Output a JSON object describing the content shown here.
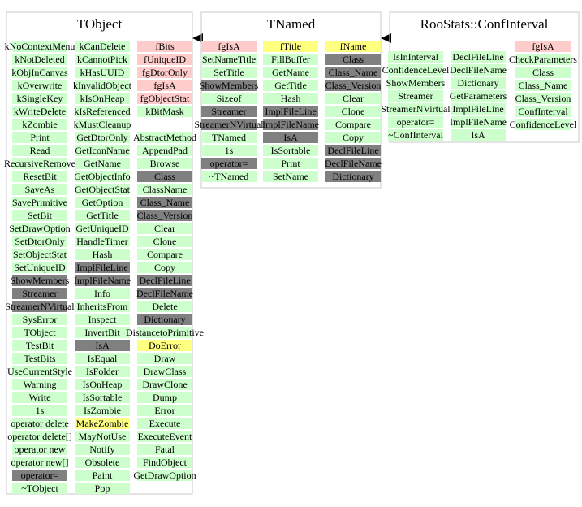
{
  "classes": [
    {
      "name": "TObject",
      "columns": [
        [
          {
            "label": "kNoContextMenu",
            "color": "#ccffcc"
          },
          {
            "label": "kNotDeleted",
            "color": "#ccffcc"
          },
          {
            "label": "kObjInCanvas",
            "color": "#ccffcc"
          },
          {
            "label": "kOverwrite",
            "color": "#ccffcc"
          },
          {
            "label": "kSingleKey",
            "color": "#ccffcc"
          },
          {
            "label": "kWriteDelete",
            "color": "#ccffcc"
          },
          {
            "label": "kZombie",
            "color": "#ccffcc"
          },
          {
            "label": "Print",
            "color": "#ccffcc"
          },
          {
            "label": "Read",
            "color": "#ccffcc"
          },
          {
            "label": "RecursiveRemove",
            "color": "#ccffcc"
          },
          {
            "label": "ResetBit",
            "color": "#ccffcc"
          },
          {
            "label": "SaveAs",
            "color": "#ccffcc"
          },
          {
            "label": "SavePrimitive",
            "color": "#ccffcc"
          },
          {
            "label": "SetBit",
            "color": "#ccffcc"
          },
          {
            "label": "SetDrawOption",
            "color": "#ccffcc"
          },
          {
            "label": "SetDtorOnly",
            "color": "#ccffcc"
          },
          {
            "label": "SetObjectStat",
            "color": "#ccffcc"
          },
          {
            "label": "SetUniqueID",
            "color": "#ccffcc"
          },
          {
            "label": "ShowMembers",
            "color": "#808080"
          },
          {
            "label": "Streamer",
            "color": "#808080"
          },
          {
            "label": "StreamerNVirtual",
            "color": "#808080"
          },
          {
            "label": "SysError",
            "color": "#ccffcc"
          },
          {
            "label": "TObject",
            "color": "#ccffcc"
          },
          {
            "label": "TestBit",
            "color": "#ccffcc"
          },
          {
            "label": "TestBits",
            "color": "#ccffcc"
          },
          {
            "label": "UseCurrentStyle",
            "color": "#ccffcc"
          },
          {
            "label": "Warning",
            "color": "#ccffcc"
          },
          {
            "label": "Write",
            "color": "#ccffcc"
          },
          {
            "label": "1s",
            "color": "#ccffcc"
          },
          {
            "label": "operator delete",
            "color": "#ccffcc"
          },
          {
            "label": "operator delete[]",
            "color": "#ccffcc"
          },
          {
            "label": "operator new",
            "color": "#ccffcc"
          },
          {
            "label": "operator new[]",
            "color": "#ccffcc"
          },
          {
            "label": "operator=",
            "color": "#808080"
          },
          {
            "label": "~TObject",
            "color": "#ccffcc"
          }
        ],
        [
          {
            "label": "kCanDelete",
            "color": "#ccffcc"
          },
          {
            "label": "kCannotPick",
            "color": "#ccffcc"
          },
          {
            "label": "kHasUUID",
            "color": "#ccffcc"
          },
          {
            "label": "kInvalidObject",
            "color": "#ccffcc"
          },
          {
            "label": "kIsOnHeap",
            "color": "#ccffcc"
          },
          {
            "label": "kIsReferenced",
            "color": "#ccffcc"
          },
          {
            "label": "kMustCleanup",
            "color": "#ccffcc"
          },
          {
            "label": "GetDtorOnly",
            "color": "#ccffcc"
          },
          {
            "label": "GetIconName",
            "color": "#ccffcc"
          },
          {
            "label": "GetName",
            "color": "#ccffcc"
          },
          {
            "label": "GetObjectInfo",
            "color": "#ccffcc"
          },
          {
            "label": "GetObjectStat",
            "color": "#ccffcc"
          },
          {
            "label": "GetOption",
            "color": "#ccffcc"
          },
          {
            "label": "GetTitle",
            "color": "#ccffcc"
          },
          {
            "label": "GetUniqueID",
            "color": "#ccffcc"
          },
          {
            "label": "HandleTimer",
            "color": "#ccffcc"
          },
          {
            "label": "Hash",
            "color": "#ccffcc"
          },
          {
            "label": "ImplFileLine",
            "color": "#808080"
          },
          {
            "label": "ImplFileName",
            "color": "#808080"
          },
          {
            "label": "Info",
            "color": "#ccffcc"
          },
          {
            "label": "InheritsFrom",
            "color": "#ccffcc"
          },
          {
            "label": "Inspect",
            "color": "#ccffcc"
          },
          {
            "label": "InvertBit",
            "color": "#ccffcc"
          },
          {
            "label": "IsA",
            "color": "#808080"
          },
          {
            "label": "IsEqual",
            "color": "#ccffcc"
          },
          {
            "label": "IsFolder",
            "color": "#ccffcc"
          },
          {
            "label": "IsOnHeap",
            "color": "#ccffcc"
          },
          {
            "label": "IsSortable",
            "color": "#ccffcc"
          },
          {
            "label": "IsZombie",
            "color": "#ccffcc"
          },
          {
            "label": "MakeZombie",
            "color": "#ffff80"
          },
          {
            "label": "MayNotUse",
            "color": "#ccffcc"
          },
          {
            "label": "Notify",
            "color": "#ccffcc"
          },
          {
            "label": "Obsolete",
            "color": "#ccffcc"
          },
          {
            "label": "Paint",
            "color": "#ccffcc"
          },
          {
            "label": "Pop",
            "color": "#ccffcc"
          }
        ],
        [
          {
            "label": "fBits",
            "color": "#ffcccc"
          },
          {
            "label": "fUniqueID",
            "color": "#ffcccc"
          },
          {
            "label": "fgDtorOnly",
            "color": "#ffcccc"
          },
          {
            "label": "fgIsA",
            "color": "#ffcccc"
          },
          {
            "label": "fgObjectStat",
            "color": "#ffcccc"
          },
          {
            "label": "kBitMask",
            "color": "#ccffcc"
          },
          null,
          {
            "label": "AbstractMethod",
            "color": "#ccffcc"
          },
          {
            "label": "AppendPad",
            "color": "#ccffcc"
          },
          {
            "label": "Browse",
            "color": "#ccffcc"
          },
          {
            "label": "Class",
            "color": "#808080"
          },
          {
            "label": "ClassName",
            "color": "#ccffcc"
          },
          {
            "label": "Class_Name",
            "color": "#808080"
          },
          {
            "label": "Class_Version",
            "color": "#808080"
          },
          {
            "label": "Clear",
            "color": "#ccffcc"
          },
          {
            "label": "Clone",
            "color": "#ccffcc"
          },
          {
            "label": "Compare",
            "color": "#ccffcc"
          },
          {
            "label": "Copy",
            "color": "#ccffcc"
          },
          {
            "label": "DeclFileLine",
            "color": "#808080"
          },
          {
            "label": "DeclFileName",
            "color": "#808080"
          },
          {
            "label": "Delete",
            "color": "#ccffcc"
          },
          {
            "label": "Dictionary",
            "color": "#808080"
          },
          {
            "label": "DistancetoPrimitive",
            "color": "#ccffcc"
          },
          {
            "label": "DoError",
            "color": "#ffff80"
          },
          {
            "label": "Draw",
            "color": "#ccffcc"
          },
          {
            "label": "DrawClass",
            "color": "#ccffcc"
          },
          {
            "label": "DrawClone",
            "color": "#ccffcc"
          },
          {
            "label": "Dump",
            "color": "#ccffcc"
          },
          {
            "label": "Error",
            "color": "#ccffcc"
          },
          {
            "label": "Execute",
            "color": "#ccffcc"
          },
          {
            "label": "ExecuteEvent",
            "color": "#ccffcc"
          },
          {
            "label": "Fatal",
            "color": "#ccffcc"
          },
          {
            "label": "FindObject",
            "color": "#ccffcc"
          },
          {
            "label": "GetDrawOption",
            "color": "#ccffcc"
          }
        ]
      ]
    },
    {
      "name": "TNamed",
      "columns": [
        [
          {
            "label": "fgIsA",
            "color": "#ffcccc"
          },
          {
            "label": "SetNameTitle",
            "color": "#ccffcc"
          },
          {
            "label": "SetTitle",
            "color": "#ccffcc"
          },
          {
            "label": "ShowMembers",
            "color": "#808080"
          },
          {
            "label": "Sizeof",
            "color": "#ccffcc"
          },
          {
            "label": "Streamer",
            "color": "#808080"
          },
          {
            "label": "StreamerNVirtual",
            "color": "#808080"
          },
          {
            "label": "TNamed",
            "color": "#ccffcc"
          },
          {
            "label": "1s",
            "color": "#ccffcc"
          },
          {
            "label": "operator=",
            "color": "#808080"
          },
          {
            "label": "~TNamed",
            "color": "#ccffcc"
          }
        ],
        [
          {
            "label": "fTitle",
            "color": "#ffff80"
          },
          {
            "label": "FillBuffer",
            "color": "#ccffcc"
          },
          {
            "label": "GetName",
            "color": "#ccffcc"
          },
          {
            "label": "GetTitle",
            "color": "#ccffcc"
          },
          {
            "label": "Hash",
            "color": "#ccffcc"
          },
          {
            "label": "ImplFileLine",
            "color": "#808080"
          },
          {
            "label": "ImplFileName",
            "color": "#808080"
          },
          {
            "label": "IsA",
            "color": "#808080"
          },
          {
            "label": "IsSortable",
            "color": "#ccffcc"
          },
          {
            "label": "Print",
            "color": "#ccffcc"
          },
          {
            "label": "SetName",
            "color": "#ccffcc"
          }
        ],
        [
          {
            "label": "fName",
            "color": "#ffff80"
          },
          {
            "label": "Class",
            "color": "#808080"
          },
          {
            "label": "Class_Name",
            "color": "#808080"
          },
          {
            "label": "Class_Version",
            "color": "#808080"
          },
          {
            "label": "Clear",
            "color": "#ccffcc"
          },
          {
            "label": "Clone",
            "color": "#ccffcc"
          },
          {
            "label": "Compare",
            "color": "#ccffcc"
          },
          {
            "label": "Copy",
            "color": "#ccffcc"
          },
          {
            "label": "DeclFileLine",
            "color": "#808080"
          },
          {
            "label": "DeclFileName",
            "color": "#808080"
          },
          {
            "label": "Dictionary",
            "color": "#808080"
          }
        ]
      ]
    },
    {
      "name": "RooStats::ConfInterval",
      "columns": [
        [
          {
            "label": "IsInInterval",
            "color": "#ccffcc"
          },
          {
            "label": "ConfidenceLevel",
            "color": "#ccffcc"
          },
          {
            "label": "ShowMembers",
            "color": "#ccffcc"
          },
          {
            "label": "Streamer",
            "color": "#ccffcc"
          },
          {
            "label": "StreamerNVirtual",
            "color": "#ccffcc"
          },
          {
            "label": "operator=",
            "color": "#ccffcc"
          },
          {
            "label": "~ConfInterval",
            "color": "#ccffcc"
          }
        ],
        [
          {
            "label": "DeclFileLine",
            "color": "#ccffcc"
          },
          {
            "label": "DeclFileName",
            "color": "#ccffcc"
          },
          {
            "label": "Dictionary",
            "color": "#ccffcc"
          },
          {
            "label": "GetParameters",
            "color": "#ccffcc"
          },
          {
            "label": "ImplFileLine",
            "color": "#ccffcc"
          },
          {
            "label": "ImplFileName",
            "color": "#ccffcc"
          },
          {
            "label": "IsA",
            "color": "#ccffcc"
          }
        ],
        [
          {
            "label": "fgIsA",
            "color": "#ffcccc"
          },
          {
            "label": "CheckParameters",
            "color": "#ccffcc"
          },
          {
            "label": "Class",
            "color": "#ccffcc"
          },
          {
            "label": "Class_Name",
            "color": "#ccffcc"
          },
          {
            "label": "Class_Version",
            "color": "#ccffcc"
          },
          {
            "label": "ConfInterval",
            "color": "#ccffcc"
          },
          {
            "label": "ConfidenceLevel",
            "color": "#ccffcc"
          }
        ]
      ]
    }
  ]
}
